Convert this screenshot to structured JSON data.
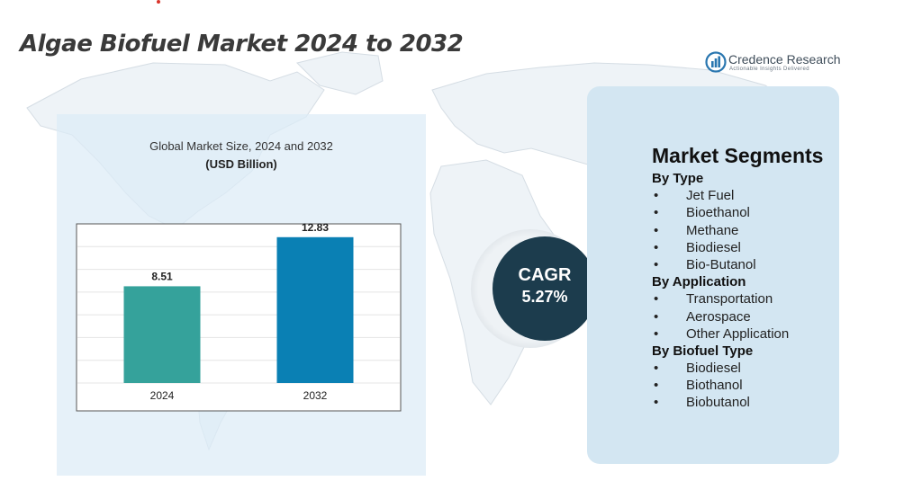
{
  "title": "Algae Biofuel Market 2024 to 2032",
  "logo": {
    "name": "Credence Research",
    "tagline": "Actionable Insights Delivered"
  },
  "chart_data": {
    "type": "bar",
    "title": "Global Market Size, 2024 and 2032",
    "unit": "(USD Billion)",
    "categories": [
      "2024",
      "2032"
    ],
    "values": [
      8.51,
      12.83
    ],
    "value_labels": [
      "8.51",
      "12.83"
    ],
    "colors": [
      "#35a29b",
      "#0a80b4"
    ],
    "ylim": [
      0,
      14
    ],
    "grid": true,
    "legend": "none"
  },
  "cagr": {
    "label": "CAGR",
    "value": "5.27%"
  },
  "segments": {
    "title": "Market Segments",
    "groups": [
      {
        "heading": "By Type",
        "items": [
          "Jet Fuel",
          "Bioethanol",
          "Methane",
          "Biodiesel",
          "Bio-Butanol"
        ]
      },
      {
        "heading": "By Application",
        "items": [
          "Transportation",
          "Aerospace",
          "Other Application"
        ]
      },
      {
        "heading": "By Biofuel Type",
        "items": [
          "Biodiesel",
          "Biothanol",
          "Biobutanol"
        ]
      }
    ]
  },
  "colors": {
    "panel": "#dcebf5",
    "cagr_circle": "#1c3c4d",
    "bar_2024": "#35a29b",
    "bar_2032": "#0a80b4"
  }
}
